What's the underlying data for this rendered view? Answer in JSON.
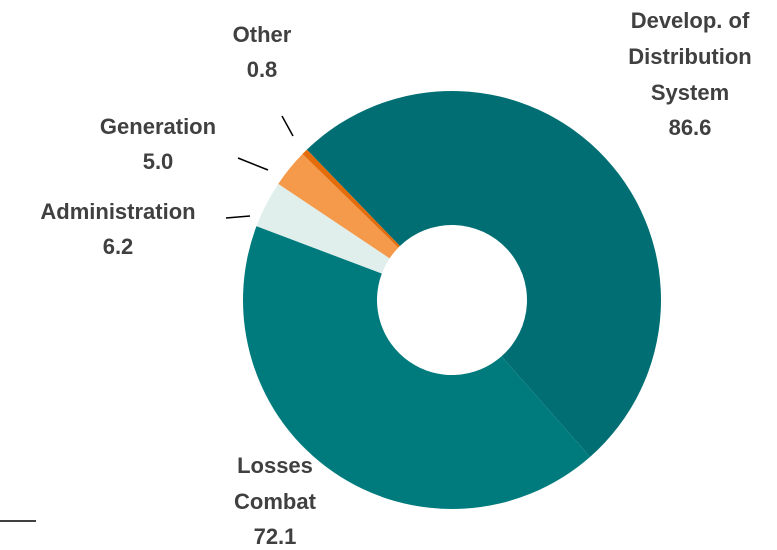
{
  "chart_data": {
    "type": "donut",
    "categories": [
      [
        "Develop. of",
        "Distribution",
        "System"
      ],
      [
        "Losses",
        "Combat"
      ],
      [
        "Administration"
      ],
      [
        "Generation"
      ],
      [
        "Other"
      ]
    ],
    "values": [
      86.6,
      72.1,
      6.2,
      5.0,
      0.8
    ],
    "value_labels": [
      "86.6",
      "72.1",
      "6.2",
      "5.0",
      "0.8"
    ],
    "colors": [
      "#006e73",
      "#007b7d",
      "#e0eeec",
      "#f59a4a",
      "#e46c0a"
    ]
  }
}
